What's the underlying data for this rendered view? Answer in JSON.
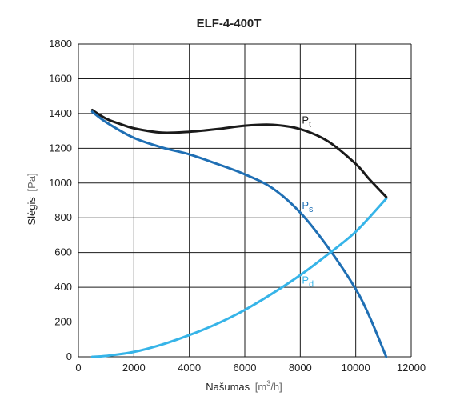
{
  "chart_data": {
    "type": "line",
    "title": "ELF-4-400T",
    "xlabel": "Našumas",
    "xunit_base": "m",
    "xunit_sup": "3",
    "xunit_tail": "/h",
    "ylabel": "Slėgis",
    "yunit": "[Pa]",
    "xlim": [
      0,
      12000
    ],
    "ylim": [
      0,
      1800
    ],
    "x_ticks": [
      0,
      2000,
      4000,
      6000,
      8000,
      10000,
      12000
    ],
    "y_ticks": [
      0,
      200,
      400,
      600,
      800,
      1000,
      1200,
      1400,
      1600,
      1800
    ],
    "grid": true,
    "series": [
      {
        "label_main": "P",
        "label_sub": "t",
        "color": "#1a1a1a",
        "x": [
          500,
          1000,
          1500,
          2000,
          3000,
          4000,
          5000,
          6000,
          7000,
          8000,
          9000,
          10000,
          10500,
          11100
        ],
        "y": [
          1420,
          1370,
          1340,
          1315,
          1290,
          1295,
          1310,
          1330,
          1335,
          1310,
          1240,
          1110,
          1020,
          920
        ]
      },
      {
        "label_main": "P",
        "label_sub": "s",
        "color": "#1f6fb4",
        "x": [
          500,
          1000,
          2000,
          3000,
          4000,
          5000,
          6000,
          7000,
          8000,
          9000,
          10000,
          10500,
          11100
        ],
        "y": [
          1410,
          1350,
          1260,
          1205,
          1165,
          1110,
          1050,
          970,
          830,
          630,
          390,
          230,
          0
        ]
      },
      {
        "label_main": "P",
        "label_sub": "d",
        "color": "#36b4e8",
        "x": [
          500,
          1000,
          2000,
          3000,
          4000,
          5000,
          6000,
          7000,
          8000,
          9000,
          10000,
          11100
        ],
        "y": [
          0,
          5,
          28,
          70,
          125,
          190,
          270,
          365,
          470,
          590,
          720,
          910
        ]
      }
    ]
  }
}
